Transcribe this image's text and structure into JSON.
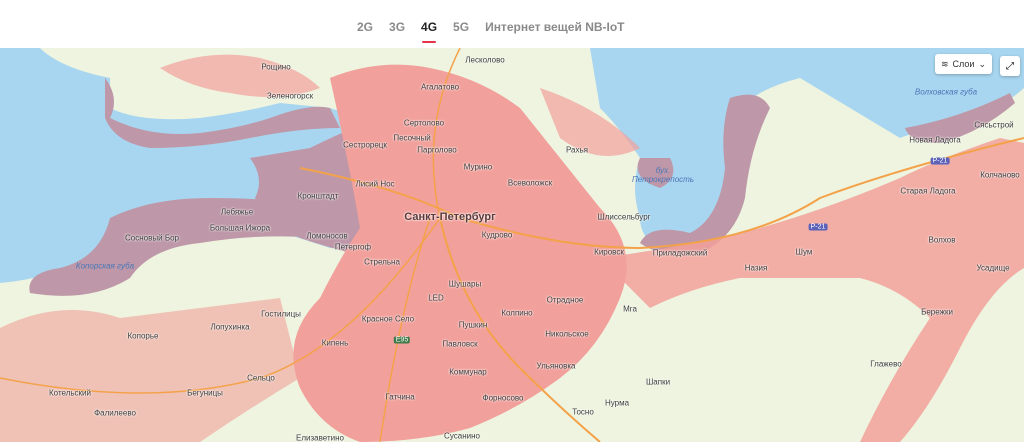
{
  "tabs": [
    {
      "label": "2G",
      "active": false
    },
    {
      "label": "3G",
      "active": false
    },
    {
      "label": "4G",
      "active": true
    },
    {
      "label": "5G",
      "active": false
    },
    {
      "label": "Интернет вещей NB-IoT",
      "active": false
    }
  ],
  "colors": {
    "accent": "#e6354b",
    "coverage": "#f2a09b",
    "coverage_water": "#be98a8",
    "water": "#a8d6f0",
    "land": "#eef4df"
  },
  "map_controls": {
    "layers_label": "Слои",
    "layers_icon": "layers-icon",
    "expand_icon": "expand-icon"
  },
  "map": {
    "main_city": "Санкт-Петербург",
    "places": [
      "Рощино",
      "Зеленогорск",
      "Лесколово",
      "Агалатово",
      "Сертолово",
      "Песочный",
      "Парголово",
      "Сестрорецк",
      "Мурино",
      "Лисий Нос",
      "Кронштадт",
      "Всеволожск",
      "Рахья",
      "Шлиссельбург",
      "Кудрово",
      "Лебяжье",
      "Большая Ижора",
      "Сосновый Бор",
      "Ломоносов",
      "Петергоф",
      "Стрельна",
      "Шушары",
      "LED",
      "Красное Село",
      "Пушкин",
      "Павловск",
      "Колпино",
      "Отрадное",
      "Никольское",
      "Ульяновка",
      "Коммунар",
      "Гатчина",
      "Форносово",
      "Тосно",
      "Нурма",
      "Шапки",
      "Мга",
      "Кировск",
      "Приладожский",
      "Назия",
      "Шум",
      "Волхов",
      "Старая Ладога",
      "Новая Ладога",
      "Сясьстрой",
      "Колчаново",
      "Усадище",
      "Бережки",
      "Глажево",
      "Копорье",
      "Лопухинка",
      "Гостилицы",
      "Кипень",
      "Сельцо",
      "Бегуницы",
      "Котельский",
      "Фалилеево",
      "Елизаветино",
      "Сусанино"
    ],
    "water_names": [
      "Копорская губа",
      "бух. Петрокрепость",
      "Волховская губа"
    ],
    "road_shields": [
      "Р-21",
      "Р-21",
      "E95"
    ]
  }
}
